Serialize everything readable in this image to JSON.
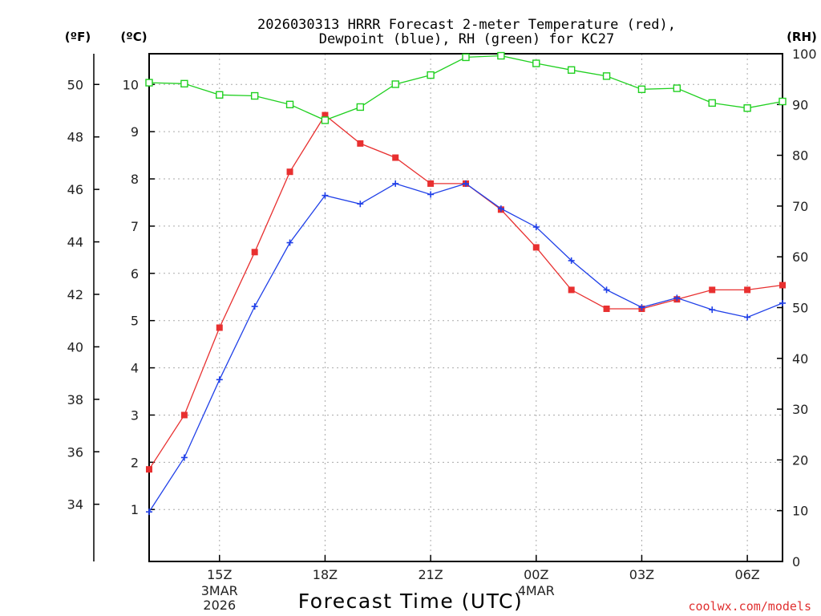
{
  "chart_data": {
    "type": "line",
    "title_line1": "2026030313 HRRR Forecast 2-meter Temperature (red),",
    "title_line2": "Dewpoint (blue), RH (green) for KC27",
    "xlabel": "Forecast Time (UTC)",
    "left_unit_f": "(ºF)",
    "left_unit_c": "(ºC)",
    "right_unit": "(RH)",
    "credit": "coolwx.com/models",
    "x_tick_labels": [
      "15Z",
      "18Z",
      "21Z",
      "00Z",
      "03Z",
      "06Z"
    ],
    "x_tick_hours": [
      2,
      5,
      8,
      11,
      14,
      17
    ],
    "x_date_labels": [
      {
        "hour": 2,
        "lines": [
          "3MAR",
          "2026"
        ]
      },
      {
        "hour": 11,
        "lines": [
          "4MAR"
        ]
      }
    ],
    "x_range_hours": [
      0,
      18
    ],
    "y_c_range": [
      -0.1,
      10.65
    ],
    "y_c_ticks": [
      1,
      2,
      3,
      4,
      5,
      6,
      7,
      8,
      9,
      10
    ],
    "y_f_ticks": [
      34,
      36,
      38,
      40,
      42,
      44,
      46,
      48,
      50
    ],
    "y_rh_range": [
      0,
      100
    ],
    "y_rh_ticks": [
      0,
      10,
      20,
      30,
      40,
      50,
      60,
      70,
      80,
      90,
      100
    ],
    "series": [
      {
        "name": "Temperature",
        "units": "C",
        "color": "#e83030",
        "marker": "filled-square",
        "hours": [
          0,
          1,
          2,
          3,
          4,
          5,
          6,
          7,
          8,
          9,
          10,
          11,
          12,
          13,
          14,
          15,
          16,
          17,
          18
        ],
        "values": [
          1.85,
          3.0,
          4.85,
          6.45,
          8.15,
          9.35,
          8.75,
          8.45,
          7.9,
          7.9,
          7.35,
          6.55,
          5.65,
          5.25,
          5.25,
          5.45,
          5.65,
          5.65,
          5.75
        ]
      },
      {
        "name": "Dewpoint",
        "units": "C",
        "color": "#2040e8",
        "marker": "plus",
        "hours": [
          0,
          1,
          2,
          3,
          4,
          5,
          6,
          7,
          8,
          9,
          10,
          11,
          12,
          13,
          14,
          15,
          16,
          17,
          18
        ],
        "values": [
          0.95,
          2.1,
          3.75,
          5.3,
          6.65,
          7.65,
          7.47,
          7.9,
          7.67,
          7.9,
          7.37,
          6.98,
          6.27,
          5.65,
          5.28,
          5.48,
          5.23,
          5.07,
          5.37
        ]
      },
      {
        "name": "RH",
        "units": "%",
        "color": "#20d020",
        "marker": "open-square",
        "hours": [
          0,
          1,
          2,
          3,
          4,
          5,
          6,
          7,
          8,
          9,
          10,
          11,
          12,
          13,
          14,
          15,
          16,
          17,
          18
        ],
        "values": [
          94.3,
          94.1,
          91.9,
          91.7,
          90.0,
          86.9,
          89.5,
          94.0,
          95.8,
          99.3,
          99.6,
          98.1,
          96.8,
          95.6,
          93.0,
          93.2,
          90.3,
          89.3,
          90.6
        ]
      }
    ]
  }
}
